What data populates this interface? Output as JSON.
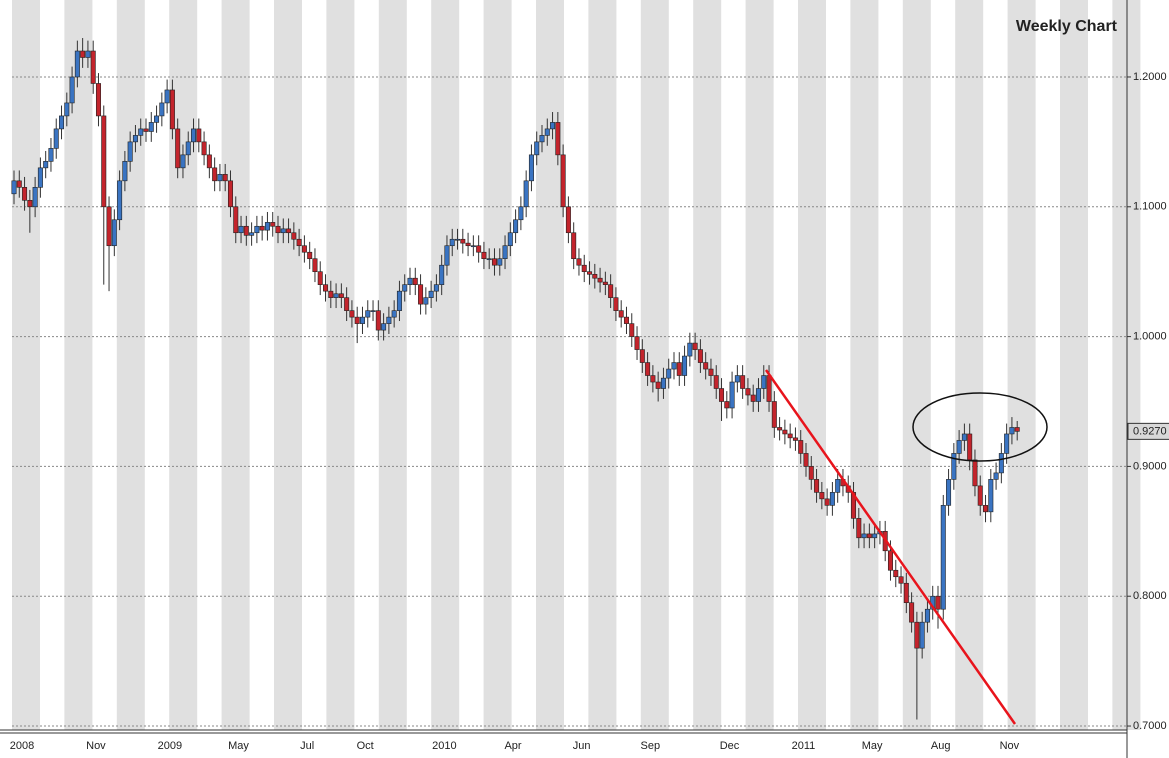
{
  "chart_data": {
    "type": "candlestick",
    "title": "Weekly Chart",
    "price_tag": "0.9270",
    "up_color": "#3a74c2",
    "down_color": "#c3242c",
    "grid": true,
    "ylim": [
      0.6954,
      1.2593
    ],
    "yticks": [
      {
        "value": 0.7,
        "label": "0.7000"
      },
      {
        "value": 0.8,
        "label": "0.8000"
      },
      {
        "value": 0.9,
        "label": "0.9000"
      },
      {
        "value": 1.0,
        "label": "1.0000"
      },
      {
        "value": 1.1,
        "label": "1.1000"
      },
      {
        "value": 1.2,
        "label": "1.2000"
      }
    ],
    "xtick_labels": [
      {
        "index": 0,
        "label": "2008"
      },
      {
        "index": 14,
        "label": "Nov"
      },
      {
        "index": 28,
        "label": "2009"
      },
      {
        "index": 41,
        "label": "May"
      },
      {
        "index": 54,
        "label": "Jul"
      },
      {
        "index": 65,
        "label": "Oct"
      },
      {
        "index": 80,
        "label": "2010"
      },
      {
        "index": 93,
        "label": "Apr"
      },
      {
        "index": 106,
        "label": "Jun"
      },
      {
        "index": 119,
        "label": "Sep"
      },
      {
        "index": 134,
        "label": "Dec"
      },
      {
        "index": 148,
        "label": "2011"
      },
      {
        "index": 161,
        "label": "May"
      },
      {
        "index": 174,
        "label": "Aug"
      },
      {
        "index": 187,
        "label": "Nov"
      }
    ],
    "candles": [
      [
        1.11,
        1.128,
        1.102,
        1.12
      ],
      [
        1.12,
        1.128,
        1.107,
        1.115
      ],
      [
        1.115,
        1.123,
        1.097,
        1.105
      ],
      [
        1.105,
        1.113,
        1.08,
        1.1
      ],
      [
        1.1,
        1.123,
        1.092,
        1.115
      ],
      [
        1.115,
        1.138,
        1.107,
        1.13
      ],
      [
        1.13,
        1.143,
        1.122,
        1.135
      ],
      [
        1.135,
        1.153,
        1.127,
        1.145
      ],
      [
        1.145,
        1.168,
        1.137,
        1.16
      ],
      [
        1.16,
        1.178,
        1.152,
        1.17
      ],
      [
        1.17,
        1.188,
        1.162,
        1.18
      ],
      [
        1.18,
        1.208,
        1.172,
        1.2
      ],
      [
        1.2,
        1.228,
        1.192,
        1.22
      ],
      [
        1.22,
        1.23,
        1.207,
        1.215
      ],
      [
        1.215,
        1.228,
        1.207,
        1.22
      ],
      [
        1.22,
        1.228,
        1.187,
        1.195
      ],
      [
        1.195,
        1.203,
        1.162,
        1.17
      ],
      [
        1.17,
        1.178,
        1.04,
        1.1
      ],
      [
        1.1,
        1.108,
        1.035,
        1.07
      ],
      [
        1.07,
        1.098,
        1.062,
        1.09
      ],
      [
        1.09,
        1.128,
        1.082,
        1.12
      ],
      [
        1.12,
        1.143,
        1.112,
        1.135
      ],
      [
        1.135,
        1.158,
        1.127,
        1.15
      ],
      [
        1.15,
        1.163,
        1.142,
        1.155
      ],
      [
        1.155,
        1.168,
        1.147,
        1.16
      ],
      [
        1.16,
        1.168,
        1.15,
        1.158
      ],
      [
        1.158,
        1.173,
        1.15,
        1.165
      ],
      [
        1.165,
        1.178,
        1.157,
        1.17
      ],
      [
        1.17,
        1.188,
        1.162,
        1.18
      ],
      [
        1.18,
        1.198,
        1.172,
        1.19
      ],
      [
        1.19,
        1.198,
        1.152,
        1.16
      ],
      [
        1.16,
        1.168,
        1.122,
        1.13
      ],
      [
        1.13,
        1.148,
        1.122,
        1.14
      ],
      [
        1.14,
        1.158,
        1.132,
        1.15
      ],
      [
        1.15,
        1.168,
        1.142,
        1.16
      ],
      [
        1.16,
        1.168,
        1.142,
        1.15
      ],
      [
        1.15,
        1.158,
        1.132,
        1.14
      ],
      [
        1.14,
        1.148,
        1.122,
        1.13
      ],
      [
        1.13,
        1.138,
        1.112,
        1.12
      ],
      [
        1.12,
        1.133,
        1.112,
        1.125
      ],
      [
        1.125,
        1.133,
        1.112,
        1.12
      ],
      [
        1.12,
        1.128,
        1.092,
        1.1
      ],
      [
        1.1,
        1.108,
        1.072,
        1.08
      ],
      [
        1.08,
        1.093,
        1.072,
        1.085
      ],
      [
        1.085,
        1.093,
        1.07,
        1.078
      ],
      [
        1.078,
        1.088,
        1.07,
        1.08
      ],
      [
        1.08,
        1.093,
        1.072,
        1.085
      ],
      [
        1.085,
        1.093,
        1.074,
        1.082
      ],
      [
        1.082,
        1.096,
        1.074,
        1.088
      ],
      [
        1.088,
        1.096,
        1.077,
        1.085
      ],
      [
        1.085,
        1.093,
        1.072,
        1.08
      ],
      [
        1.08,
        1.091,
        1.072,
        1.083
      ],
      [
        1.083,
        1.091,
        1.072,
        1.08
      ],
      [
        1.08,
        1.088,
        1.067,
        1.075
      ],
      [
        1.075,
        1.083,
        1.062,
        1.07
      ],
      [
        1.07,
        1.078,
        1.057,
        1.065
      ],
      [
        1.065,
        1.073,
        1.052,
        1.06
      ],
      [
        1.06,
        1.068,
        1.042,
        1.05
      ],
      [
        1.05,
        1.058,
        1.032,
        1.04
      ],
      [
        1.04,
        1.048,
        1.027,
        1.035
      ],
      [
        1.035,
        1.043,
        1.022,
        1.03
      ],
      [
        1.03,
        1.041,
        1.022,
        1.033
      ],
      [
        1.033,
        1.041,
        1.022,
        1.03
      ],
      [
        1.03,
        1.038,
        1.012,
        1.02
      ],
      [
        1.02,
        1.028,
        1.007,
        1.015
      ],
      [
        1.015,
        1.023,
        0.995,
        1.01
      ],
      [
        1.01,
        1.023,
        1.002,
        1.015
      ],
      [
        1.015,
        1.028,
        1.007,
        1.02
      ],
      [
        1.02,
        1.028,
        1.012,
        1.02
      ],
      [
        1.02,
        1.028,
        0.997,
        1.005
      ],
      [
        1.005,
        1.018,
        0.997,
        1.01
      ],
      [
        1.01,
        1.023,
        1.002,
        1.015
      ],
      [
        1.015,
        1.028,
        1.007,
        1.02
      ],
      [
        1.02,
        1.043,
        1.012,
        1.035
      ],
      [
        1.035,
        1.048,
        1.027,
        1.04
      ],
      [
        1.04,
        1.053,
        1.032,
        1.045
      ],
      [
        1.045,
        1.053,
        1.032,
        1.04
      ],
      [
        1.04,
        1.048,
        1.017,
        1.025
      ],
      [
        1.025,
        1.038,
        1.017,
        1.03
      ],
      [
        1.03,
        1.043,
        1.022,
        1.035
      ],
      [
        1.035,
        1.048,
        1.027,
        1.04
      ],
      [
        1.04,
        1.063,
        1.032,
        1.055
      ],
      [
        1.055,
        1.078,
        1.047,
        1.07
      ],
      [
        1.07,
        1.083,
        1.062,
        1.075
      ],
      [
        1.075,
        1.083,
        1.067,
        1.075
      ],
      [
        1.075,
        1.083,
        1.064,
        1.072
      ],
      [
        1.072,
        1.08,
        1.062,
        1.07
      ],
      [
        1.07,
        1.078,
        1.062,
        1.07
      ],
      [
        1.07,
        1.078,
        1.057,
        1.065
      ],
      [
        1.065,
        1.073,
        1.052,
        1.06
      ],
      [
        1.06,
        1.068,
        1.052,
        1.06
      ],
      [
        1.06,
        1.068,
        1.047,
        1.055
      ],
      [
        1.055,
        1.068,
        1.047,
        1.06
      ],
      [
        1.06,
        1.078,
        1.052,
        1.07
      ],
      [
        1.07,
        1.088,
        1.062,
        1.08
      ],
      [
        1.08,
        1.098,
        1.072,
        1.09
      ],
      [
        1.09,
        1.108,
        1.082,
        1.1
      ],
      [
        1.1,
        1.128,
        1.092,
        1.12
      ],
      [
        1.12,
        1.148,
        1.112,
        1.14
      ],
      [
        1.14,
        1.158,
        1.132,
        1.15
      ],
      [
        1.15,
        1.163,
        1.142,
        1.155
      ],
      [
        1.155,
        1.168,
        1.147,
        1.16
      ],
      [
        1.16,
        1.173,
        1.152,
        1.165
      ],
      [
        1.165,
        1.173,
        1.132,
        1.14
      ],
      [
        1.14,
        1.148,
        1.092,
        1.1
      ],
      [
        1.1,
        1.108,
        1.072,
        1.08
      ],
      [
        1.08,
        1.088,
        1.052,
        1.06
      ],
      [
        1.06,
        1.068,
        1.047,
        1.055
      ],
      [
        1.055,
        1.063,
        1.042,
        1.05
      ],
      [
        1.05,
        1.058,
        1.04,
        1.048
      ],
      [
        1.048,
        1.056,
        1.037,
        1.045
      ],
      [
        1.045,
        1.053,
        1.034,
        1.042
      ],
      [
        1.042,
        1.05,
        1.032,
        1.04
      ],
      [
        1.04,
        1.048,
        1.022,
        1.03
      ],
      [
        1.03,
        1.038,
        1.012,
        1.02
      ],
      [
        1.02,
        1.028,
        1.007,
        1.015
      ],
      [
        1.015,
        1.023,
        1.002,
        1.01
      ],
      [
        1.01,
        1.018,
        0.992,
        1.0
      ],
      [
        1.0,
        1.008,
        0.982,
        0.99
      ],
      [
        0.99,
        0.998,
        0.972,
        0.98
      ],
      [
        0.98,
        0.988,
        0.962,
        0.97
      ],
      [
        0.97,
        0.978,
        0.957,
        0.965
      ],
      [
        0.965,
        0.973,
        0.95,
        0.96
      ],
      [
        0.96,
        0.976,
        0.952,
        0.968
      ],
      [
        0.968,
        0.983,
        0.96,
        0.975
      ],
      [
        0.975,
        0.988,
        0.967,
        0.98
      ],
      [
        0.98,
        0.988,
        0.962,
        0.97
      ],
      [
        0.97,
        0.993,
        0.962,
        0.985
      ],
      [
        0.985,
        1.003,
        0.977,
        0.995
      ],
      [
        0.995,
        1.003,
        0.982,
        0.99
      ],
      [
        0.99,
        0.998,
        0.972,
        0.98
      ],
      [
        0.98,
        0.988,
        0.967,
        0.975
      ],
      [
        0.975,
        0.983,
        0.962,
        0.97
      ],
      [
        0.97,
        0.978,
        0.952,
        0.96
      ],
      [
        0.96,
        0.968,
        0.935,
        0.95
      ],
      [
        0.95,
        0.958,
        0.937,
        0.945
      ],
      [
        0.945,
        0.973,
        0.937,
        0.965
      ],
      [
        0.965,
        0.978,
        0.957,
        0.97
      ],
      [
        0.97,
        0.978,
        0.952,
        0.96
      ],
      [
        0.96,
        0.968,
        0.947,
        0.955
      ],
      [
        0.955,
        0.963,
        0.942,
        0.95
      ],
      [
        0.95,
        0.968,
        0.942,
        0.96
      ],
      [
        0.96,
        0.978,
        0.952,
        0.97
      ],
      [
        0.97,
        0.978,
        0.942,
        0.95
      ],
      [
        0.95,
        0.958,
        0.922,
        0.93
      ],
      [
        0.93,
        0.938,
        0.92,
        0.928
      ],
      [
        0.928,
        0.936,
        0.917,
        0.925
      ],
      [
        0.925,
        0.933,
        0.914,
        0.922
      ],
      [
        0.922,
        0.93,
        0.912,
        0.92
      ],
      [
        0.92,
        0.928,
        0.902,
        0.91
      ],
      [
        0.91,
        0.918,
        0.892,
        0.9
      ],
      [
        0.9,
        0.908,
        0.882,
        0.89
      ],
      [
        0.89,
        0.898,
        0.872,
        0.88
      ],
      [
        0.88,
        0.888,
        0.867,
        0.875
      ],
      [
        0.875,
        0.883,
        0.862,
        0.87
      ],
      [
        0.87,
        0.888,
        0.862,
        0.88
      ],
      [
        0.88,
        0.898,
        0.872,
        0.89
      ],
      [
        0.89,
        0.898,
        0.877,
        0.885
      ],
      [
        0.885,
        0.893,
        0.872,
        0.88
      ],
      [
        0.88,
        0.888,
        0.852,
        0.86
      ],
      [
        0.86,
        0.868,
        0.837,
        0.845
      ],
      [
        0.845,
        0.856,
        0.837,
        0.848
      ],
      [
        0.848,
        0.856,
        0.837,
        0.845
      ],
      [
        0.845,
        0.856,
        0.837,
        0.848
      ],
      [
        0.848,
        0.858,
        0.84,
        0.85
      ],
      [
        0.85,
        0.858,
        0.827,
        0.835
      ],
      [
        0.835,
        0.843,
        0.812,
        0.82
      ],
      [
        0.82,
        0.828,
        0.807,
        0.815
      ],
      [
        0.815,
        0.823,
        0.802,
        0.81
      ],
      [
        0.81,
        0.818,
        0.787,
        0.795
      ],
      [
        0.795,
        0.803,
        0.772,
        0.78
      ],
      [
        0.78,
        0.788,
        0.705,
        0.76
      ],
      [
        0.76,
        0.788,
        0.752,
        0.78
      ],
      [
        0.78,
        0.798,
        0.772,
        0.79
      ],
      [
        0.79,
        0.808,
        0.782,
        0.8
      ],
      [
        0.8,
        0.808,
        0.775,
        0.79
      ],
      [
        0.79,
        0.878,
        0.782,
        0.87
      ],
      [
        0.87,
        0.898,
        0.862,
        0.89
      ],
      [
        0.89,
        0.918,
        0.882,
        0.91
      ],
      [
        0.91,
        0.928,
        0.902,
        0.92
      ],
      [
        0.92,
        0.933,
        0.912,
        0.925
      ],
      [
        0.925,
        0.933,
        0.897,
        0.905
      ],
      [
        0.905,
        0.913,
        0.877,
        0.885
      ],
      [
        0.885,
        0.893,
        0.862,
        0.87
      ],
      [
        0.87,
        0.878,
        0.857,
        0.865
      ],
      [
        0.865,
        0.898,
        0.857,
        0.89
      ],
      [
        0.89,
        0.903,
        0.882,
        0.895
      ],
      [
        0.895,
        0.918,
        0.887,
        0.91
      ],
      [
        0.91,
        0.933,
        0.902,
        0.925
      ],
      [
        0.925,
        0.938,
        0.917,
        0.93
      ],
      [
        0.93,
        0.935,
        0.92,
        0.927
      ]
    ]
  }
}
